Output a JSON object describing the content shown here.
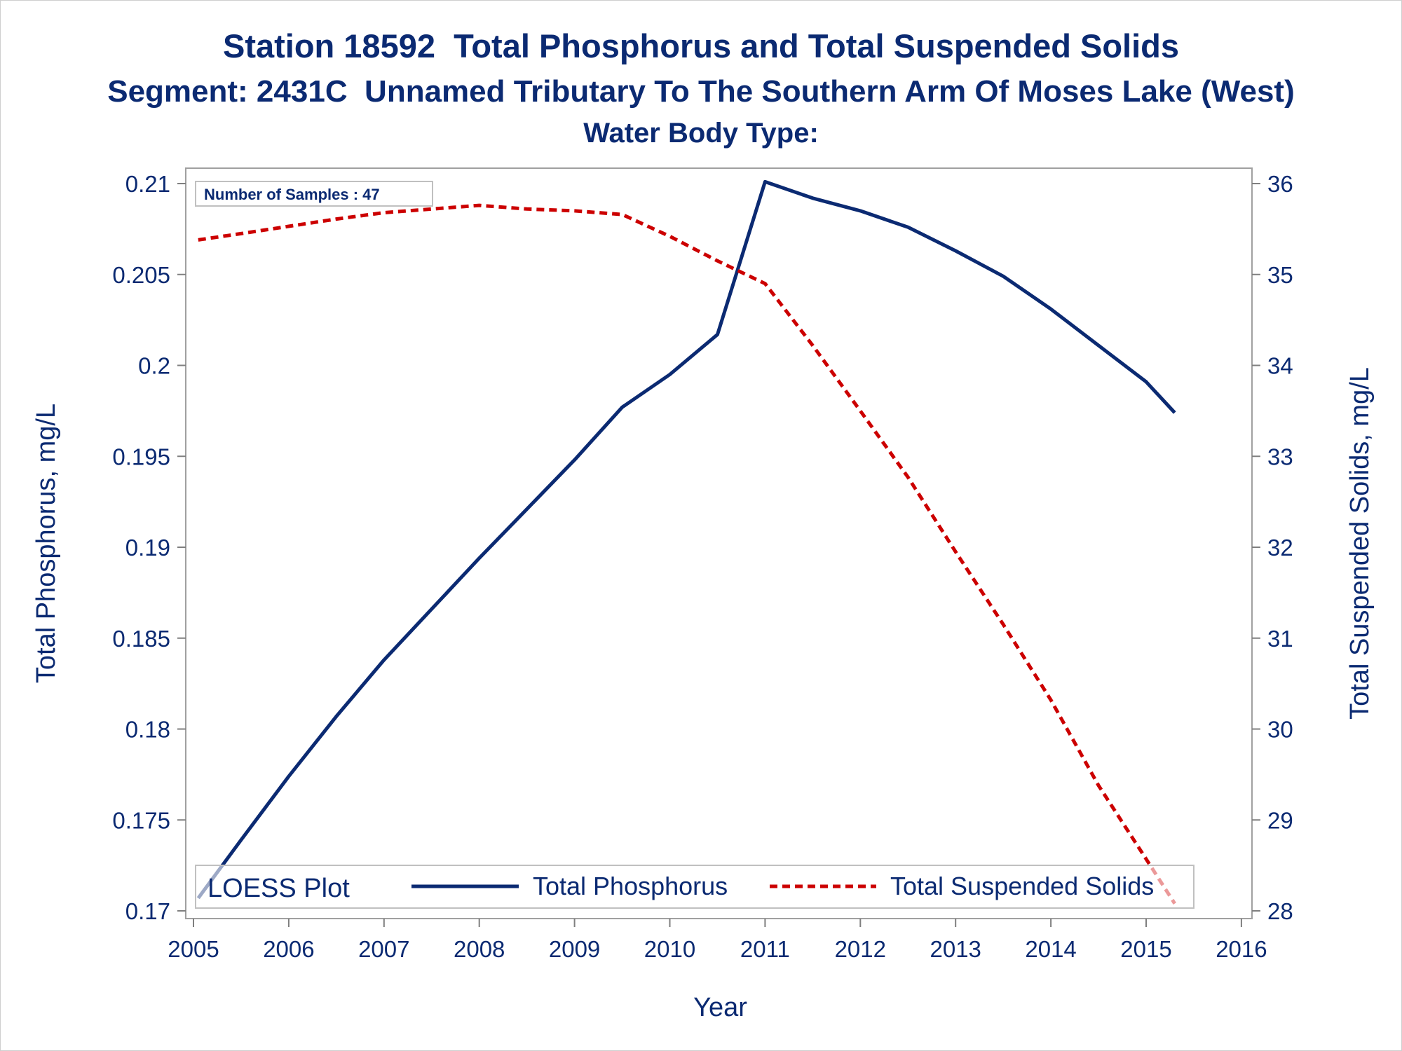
{
  "chart_data": {
    "type": "line",
    "title": "Station 18592  Total Phosphorus and Total Suspended Solids",
    "subtitle": "Segment: 2431C  Unnamed Tributary To The Southern Arm Of Moses Lake (West)",
    "subtitle2": "Water Body Type:",
    "xlabel": "Year",
    "ylabel_left": "Total Phosphorus, mg/L",
    "ylabel_right": "Total Suspended Solids, mg/L",
    "xlim": [
      2005,
      2016
    ],
    "ylim_left": [
      0.17,
      0.21
    ],
    "ylim_right": [
      28,
      36
    ],
    "xticks": [
      "2005",
      "2006",
      "2007",
      "2008",
      "2009",
      "2010",
      "2011",
      "2012",
      "2013",
      "2014",
      "2015",
      "2016"
    ],
    "yticks_left": [
      "0.17",
      "0.175",
      "0.18",
      "0.185",
      "0.19",
      "0.195",
      "0.2",
      "0.205",
      "0.21"
    ],
    "yticks_right": [
      "28",
      "29",
      "30",
      "31",
      "32",
      "33",
      "34",
      "35",
      "36"
    ],
    "inset_note": "Number of Samples : 47",
    "legend": {
      "title": "LOESS Plot",
      "placement": "bottom-inside",
      "items": [
        "Total Phosphorus",
        "Total Suspended Solids"
      ]
    },
    "series": [
      {
        "name": "Total Phosphorus",
        "axis": "left",
        "color": "#0b2a72",
        "style": "solid",
        "x": [
          2005.05,
          2005.5,
          2006.0,
          2006.5,
          2007.0,
          2007.5,
          2008.0,
          2008.5,
          2009.0,
          2009.5,
          2010.0,
          2010.5,
          2011.0,
          2011.5,
          2012.0,
          2012.5,
          2013.0,
          2013.5,
          2014.0,
          2014.5,
          2015.0,
          2015.3
        ],
        "y": [
          0.1707,
          0.1739,
          0.1774,
          0.1807,
          0.1838,
          0.1866,
          0.1894,
          0.1921,
          0.1948,
          0.1977,
          0.1995,
          0.2017,
          0.2101,
          0.2092,
          0.2085,
          0.2076,
          0.2063,
          0.2049,
          0.2031,
          0.2011,
          0.1991,
          0.1974
        ]
      },
      {
        "name": "Total Suspended Solids",
        "axis": "right",
        "color": "#cc0000",
        "style": "dashed",
        "x": [
          2005.05,
          2005.5,
          2006.0,
          2006.5,
          2007.0,
          2007.5,
          2008.0,
          2008.5,
          2009.0,
          2009.5,
          2010.0,
          2010.5,
          2011.0,
          2011.5,
          2012.0,
          2012.5,
          2013.0,
          2013.5,
          2014.0,
          2014.5,
          2015.0,
          2015.3
        ],
        "y": [
          35.38,
          35.45,
          35.53,
          35.61,
          35.68,
          35.72,
          35.76,
          35.72,
          35.7,
          35.66,
          35.42,
          35.15,
          34.9,
          34.22,
          33.5,
          32.77,
          31.95,
          31.15,
          30.32,
          29.38,
          28.57,
          28.08
        ]
      }
    ]
  }
}
